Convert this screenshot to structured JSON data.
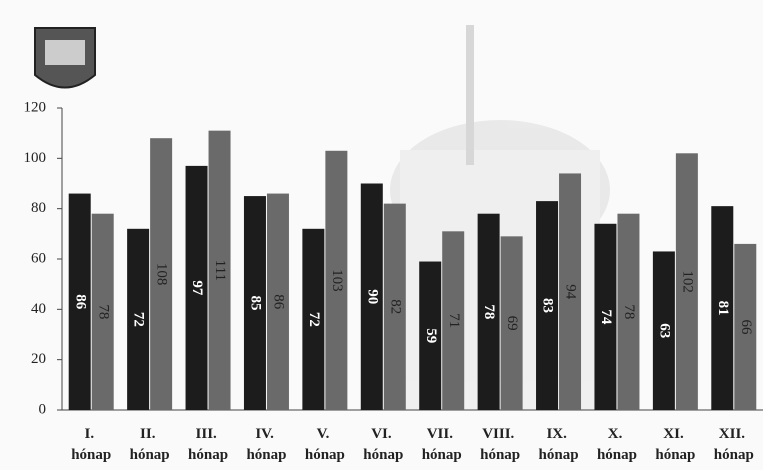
{
  "chart_data": {
    "type": "bar",
    "categories": [
      "I. hónap",
      "II. hónap",
      "III. hónap",
      "IV. hónap",
      "V. hónap",
      "VI. hónap",
      "VII. hónap",
      "VIII. hónap",
      "IX. hónap",
      "X. hónap",
      "XI. hónap",
      "XII. hónap"
    ],
    "series": [
      {
        "color": "#1c1c1c",
        "values": [
          86,
          72,
          97,
          85,
          72,
          90,
          59,
          78,
          83,
          74,
          63,
          81
        ]
      },
      {
        "color": "#6a6a6a",
        "values": [
          78,
          108,
          111,
          86,
          103,
          82,
          71,
          69,
          94,
          78,
          102,
          66
        ]
      }
    ],
    "ylim": [
      0,
      120
    ],
    "yticks": [
      0,
      20,
      40,
      60,
      80,
      100,
      120
    ],
    "grid": false
  }
}
